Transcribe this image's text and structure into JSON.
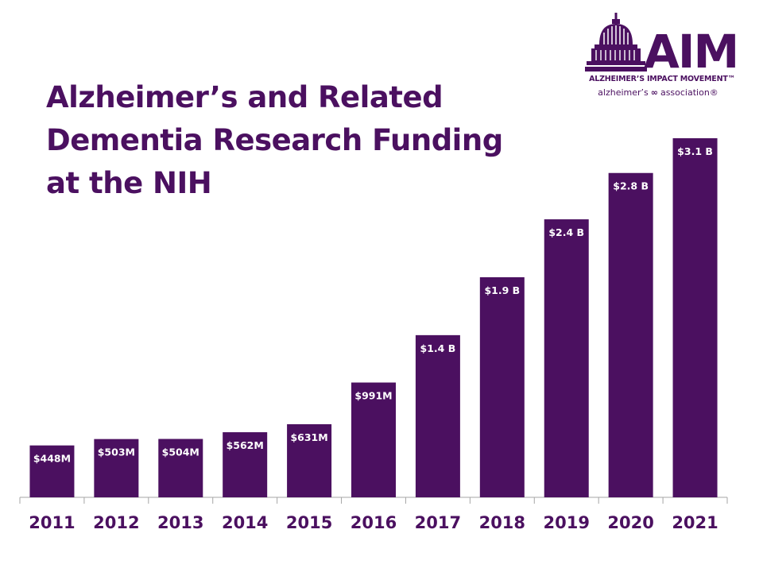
{
  "title": "Alzheimer’s and Related Dementia Research Funding at the NIH",
  "logo": {
    "name": "AIM",
    "tagline": "ALZHEIMER’S IMPACT MOVEMENT™",
    "association_left": "alzheimer’s",
    "association_right": "association®",
    "icon": "capitol-dome-icon"
  },
  "colors": {
    "bar": "#4b1060",
    "title": "#4b1060",
    "label": "#ffffff",
    "axis": "#a6a6a6"
  },
  "chart_data": {
    "type": "bar",
    "title": "Alzheimer’s and Related Dementia Research Funding at the NIH",
    "xlabel": "",
    "ylabel": "",
    "units": "USD millions",
    "categories": [
      "2011",
      "2012",
      "2013",
      "2014",
      "2015",
      "2016",
      "2017",
      "2018",
      "2019",
      "2020",
      "2021"
    ],
    "values": [
      448,
      503,
      504,
      562,
      631,
      991,
      1400,
      1900,
      2400,
      2800,
      3100
    ],
    "data_labels": [
      "$448M",
      "$503M",
      "$504M",
      "$562M",
      "$631M",
      "$991M",
      "$1.4 B",
      "$1.9 B",
      "$2.4 B",
      "$2.8 B",
      "$3.1 B"
    ],
    "ylim": [
      0,
      3500
    ],
    "grid": false,
    "legend": "none"
  }
}
